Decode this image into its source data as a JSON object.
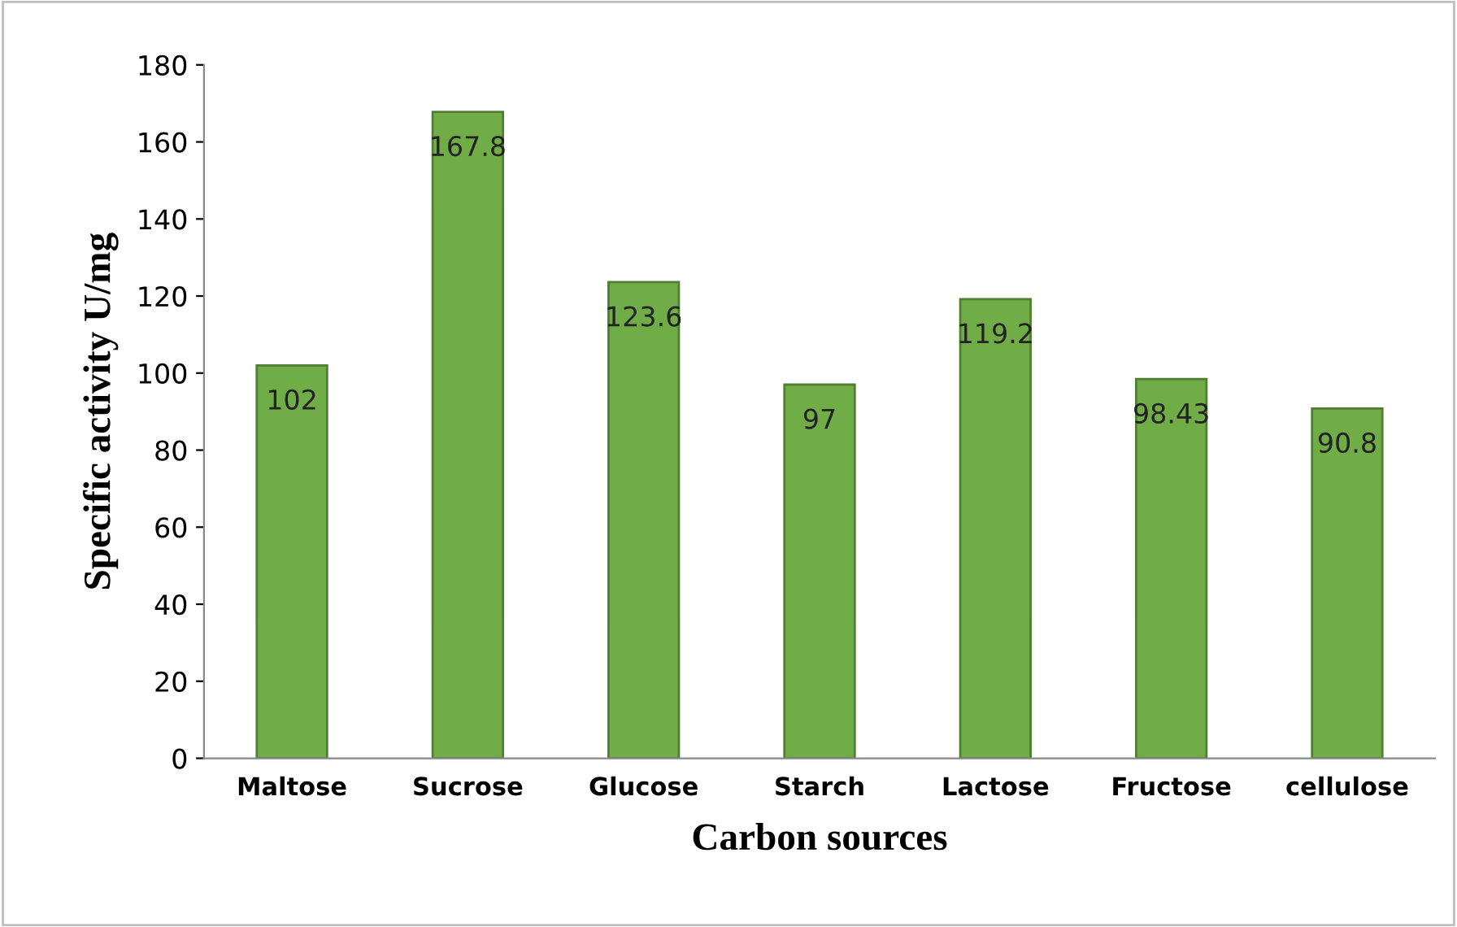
{
  "chart_data": {
    "type": "bar",
    "xlabel": "Carbon sources",
    "ylabel": "Specific activity U/mg",
    "categories": [
      "Maltose",
      "Sucrose",
      "Glucose",
      "Starch",
      "Lactose",
      "Fructose",
      "cellulose"
    ],
    "values": [
      102,
      167.8,
      123.6,
      97,
      119.2,
      98.43,
      90.8
    ],
    "color": "#70ad47",
    "ylim": [
      0,
      180
    ],
    "yticks": [
      0,
      20,
      40,
      60,
      80,
      100,
      120,
      140,
      160,
      180
    ],
    "data_labels": true,
    "grid": false,
    "legend": false
  }
}
